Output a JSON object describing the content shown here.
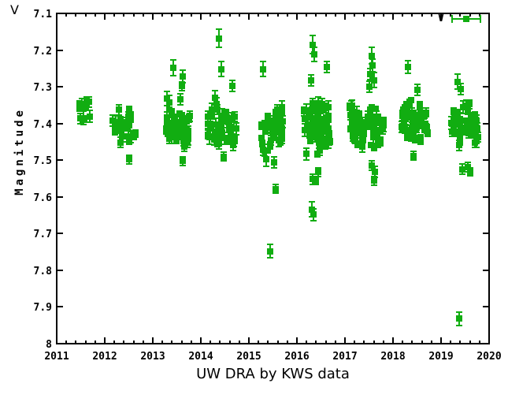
{
  "corner_label": "V",
  "legend": {
    "label": "V"
  },
  "y_axis_label": "Magnitude",
  "title": "UW DRA by KWS data",
  "colors": {
    "point_green": "#11ad11",
    "axis_black": "#000000",
    "background": "#ffffff"
  },
  "chart_data": {
    "type": "scatter",
    "title": "UW DRA by KWS data",
    "xlabel": "",
    "ylabel": "Magnitude",
    "legend_entries": [
      "V"
    ],
    "legend_position": "top-right-inside",
    "marker": "filled-square-with-vertical-error-bars",
    "x_range": [
      2011,
      2020
    ],
    "y_range_top_to_bottom": [
      7.1,
      8.0
    ],
    "y_axis_inverted": true,
    "grid": false,
    "x_major_ticks": [
      2011,
      2012,
      2013,
      2014,
      2015,
      2016,
      2017,
      2018,
      2019,
      2020
    ],
    "x_tick_labels": [
      "2011",
      "2012",
      "2013",
      "2014",
      "2015",
      "2016",
      "2017",
      "2018",
      "2019",
      "2020"
    ],
    "x_minor_tick_step": 0.2,
    "y_major_ticks": [
      7.1,
      7.2,
      7.3,
      7.4,
      7.5,
      7.6,
      7.7,
      7.8,
      7.9,
      8.0
    ],
    "y_tick_labels": [
      "7.1",
      "7.2",
      "7.3",
      "7.4",
      "7.5",
      "7.6",
      "7.7",
      "7.8",
      "7.9",
      "8"
    ],
    "clusters": [
      {
        "x_min": 2011.46,
        "x_max": 2011.73,
        "n": 10,
        "mag_mean": 7.372,
        "mag_spread": 0.042,
        "seed": 101
      },
      {
        "x_min": 2012.15,
        "x_max": 2012.65,
        "n": 26,
        "mag_mean": 7.405,
        "mag_spread": 0.055,
        "seed": 202
      },
      {
        "x_min": 2013.27,
        "x_max": 2013.78,
        "n": 38,
        "mag_mean": 7.41,
        "mag_spread": 0.057,
        "seed": 303
      },
      {
        "x_min": 2014.14,
        "x_max": 2014.75,
        "n": 46,
        "mag_mean": 7.405,
        "mag_spread": 0.062,
        "seed": 404
      },
      {
        "x_min": 2015.25,
        "x_max": 2015.72,
        "n": 44,
        "mag_mean": 7.41,
        "mag_spread": 0.068,
        "seed": 505
      },
      {
        "x_min": 2016.14,
        "x_max": 2016.7,
        "n": 70,
        "mag_mean": 7.41,
        "mag_spread": 0.075,
        "seed": 606
      },
      {
        "x_min": 2017.1,
        "x_max": 2017.85,
        "n": 66,
        "mag_mean": 7.405,
        "mag_spread": 0.062,
        "seed": 707
      },
      {
        "x_min": 2018.18,
        "x_max": 2018.72,
        "n": 52,
        "mag_mean": 7.395,
        "mag_spread": 0.058,
        "seed": 808
      },
      {
        "x_min": 2019.2,
        "x_max": 2019.78,
        "n": 46,
        "mag_mean": 7.4,
        "mag_spread": 0.058,
        "seed": 909
      }
    ],
    "outliers": [
      {
        "x": 2012.5,
        "mag": 7.498,
        "err": 0.012
      },
      {
        "x": 2013.42,
        "mag": 7.248,
        "err": 0.022
      },
      {
        "x": 2013.63,
        "mag": 7.272,
        "err": 0.018
      },
      {
        "x": 2013.6,
        "mag": 7.298,
        "err": 0.012
      },
      {
        "x": 2013.3,
        "mag": 7.332,
        "err": 0.02
      },
      {
        "x": 2013.35,
        "mag": 7.342,
        "err": 0.018
      },
      {
        "x": 2013.57,
        "mag": 7.335,
        "err": 0.015
      },
      {
        "x": 2013.62,
        "mag": 7.502,
        "err": 0.012
      },
      {
        "x": 2014.38,
        "mag": 7.168,
        "err": 0.025
      },
      {
        "x": 2014.43,
        "mag": 7.252,
        "err": 0.02
      },
      {
        "x": 2014.65,
        "mag": 7.298,
        "err": 0.015
      },
      {
        "x": 2014.3,
        "mag": 7.33,
        "err": 0.02
      },
      {
        "x": 2014.47,
        "mag": 7.49,
        "err": 0.012
      },
      {
        "x": 2015.3,
        "mag": 7.252,
        "err": 0.02
      },
      {
        "x": 2015.36,
        "mag": 7.498,
        "err": 0.018
      },
      {
        "x": 2015.53,
        "mag": 7.505,
        "err": 0.015
      },
      {
        "x": 2015.56,
        "mag": 7.578,
        "err": 0.012
      },
      {
        "x": 2015.44,
        "mag": 7.748,
        "err": 0.018
      },
      {
        "x": 2016.33,
        "mag": 7.185,
        "err": 0.025
      },
      {
        "x": 2016.36,
        "mag": 7.212,
        "err": 0.02
      },
      {
        "x": 2016.62,
        "mag": 7.246,
        "err": 0.016
      },
      {
        "x": 2016.3,
        "mag": 7.282,
        "err": 0.015
      },
      {
        "x": 2016.45,
        "mag": 7.532,
        "err": 0.012
      },
      {
        "x": 2016.33,
        "mag": 7.552,
        "err": 0.014
      },
      {
        "x": 2016.4,
        "mag": 7.556,
        "err": 0.01
      },
      {
        "x": 2016.31,
        "mag": 7.634,
        "err": 0.02
      },
      {
        "x": 2016.35,
        "mag": 7.648,
        "err": 0.016
      },
      {
        "x": 2017.55,
        "mag": 7.215,
        "err": 0.022
      },
      {
        "x": 2017.57,
        "mag": 7.242,
        "err": 0.018
      },
      {
        "x": 2017.53,
        "mag": 7.266,
        "err": 0.015
      },
      {
        "x": 2017.61,
        "mag": 7.282,
        "err": 0.02
      },
      {
        "x": 2017.5,
        "mag": 7.3,
        "err": 0.015
      },
      {
        "x": 2017.56,
        "mag": 7.514,
        "err": 0.013
      },
      {
        "x": 2017.62,
        "mag": 7.532,
        "err": 0.015
      },
      {
        "x": 2017.6,
        "mag": 7.556,
        "err": 0.012
      },
      {
        "x": 2018.31,
        "mag": 7.246,
        "err": 0.018
      },
      {
        "x": 2018.5,
        "mag": 7.308,
        "err": 0.015
      },
      {
        "x": 2018.43,
        "mag": 7.488,
        "err": 0.012
      },
      {
        "x": 2019.35,
        "mag": 7.286,
        "err": 0.02
      },
      {
        "x": 2019.41,
        "mag": 7.306,
        "err": 0.015
      },
      {
        "x": 2019.55,
        "mag": 7.518,
        "err": 0.013
      },
      {
        "x": 2019.61,
        "mag": 7.532,
        "err": 0.011
      },
      {
        "x": 2019.44,
        "mag": 7.525,
        "err": 0.014
      },
      {
        "x": 2019.38,
        "mag": 7.932,
        "err": 0.018
      }
    ]
  }
}
